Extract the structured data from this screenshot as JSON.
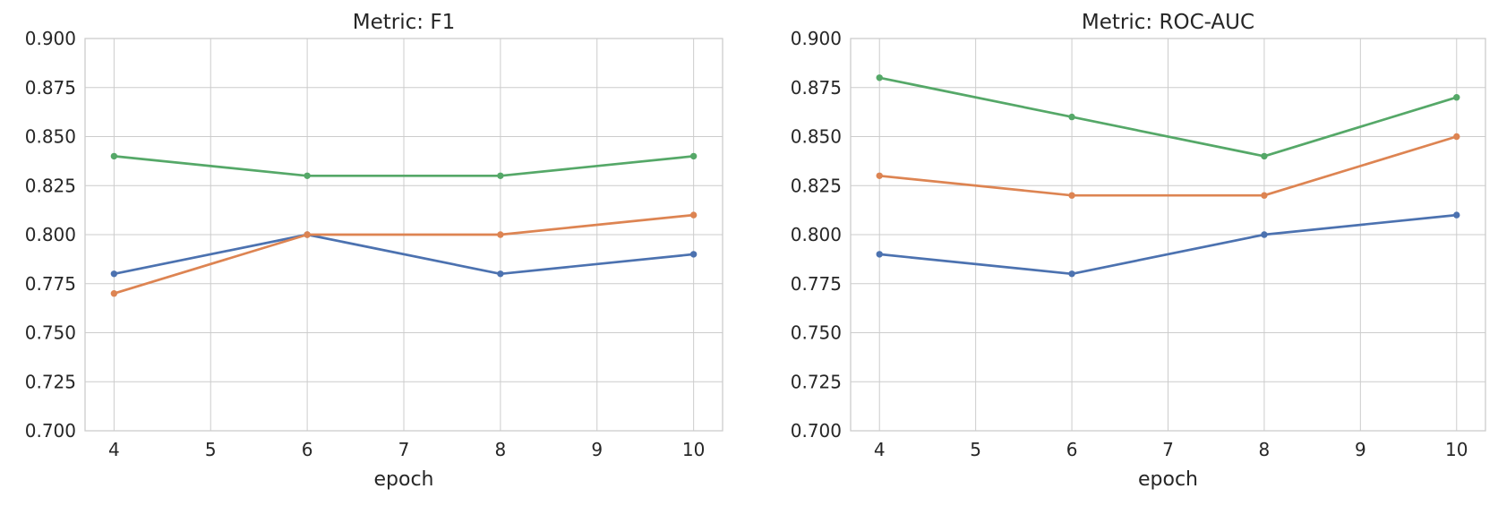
{
  "figure": {
    "background": "#ffffff",
    "text_color": "#262626",
    "grid_color": "#cccccc",
    "spine_color": "#cccccc"
  },
  "chart_data": [
    {
      "type": "line",
      "title": "Metric: F1",
      "xlabel": "epoch",
      "ylabel": "",
      "x": [
        4,
        6,
        8,
        10
      ],
      "xtick_labels": [
        "4",
        "5",
        "6",
        "7",
        "8",
        "9",
        "10"
      ],
      "ytick_labels": [
        "0.700",
        "0.725",
        "0.750",
        "0.775",
        "0.800",
        "0.825",
        "0.850",
        "0.875",
        "0.900"
      ],
      "xlim": [
        3.7,
        10.3
      ],
      "ylim": [
        0.7,
        0.9
      ],
      "grid": true,
      "legend_position": "none",
      "series": [
        {
          "name": "blue-series",
          "color": "#4C72B0",
          "values": [
            0.78,
            0.8,
            0.78,
            0.79
          ]
        },
        {
          "name": "orange-series",
          "color": "#DD8452",
          "values": [
            0.77,
            0.8,
            0.8,
            0.81
          ]
        },
        {
          "name": "green-series",
          "color": "#55A868",
          "values": [
            0.84,
            0.83,
            0.83,
            0.84
          ]
        }
      ]
    },
    {
      "type": "line",
      "title": "Metric: ROC-AUC",
      "xlabel": "epoch",
      "ylabel": "",
      "x": [
        4,
        6,
        8,
        10
      ],
      "xtick_labels": [
        "4",
        "5",
        "6",
        "7",
        "8",
        "9",
        "10"
      ],
      "ytick_labels": [
        "0.700",
        "0.725",
        "0.750",
        "0.775",
        "0.800",
        "0.825",
        "0.850",
        "0.875",
        "0.900"
      ],
      "xlim": [
        3.7,
        10.3
      ],
      "ylim": [
        0.7,
        0.9
      ],
      "grid": true,
      "legend_position": "none",
      "series": [
        {
          "name": "blue-series",
          "color": "#4C72B0",
          "values": [
            0.79,
            0.78,
            0.8,
            0.81
          ]
        },
        {
          "name": "orange-series",
          "color": "#DD8452",
          "values": [
            0.83,
            0.82,
            0.82,
            0.85
          ]
        },
        {
          "name": "green-series",
          "color": "#55A868",
          "values": [
            0.88,
            0.86,
            0.84,
            0.87
          ]
        }
      ]
    }
  ]
}
